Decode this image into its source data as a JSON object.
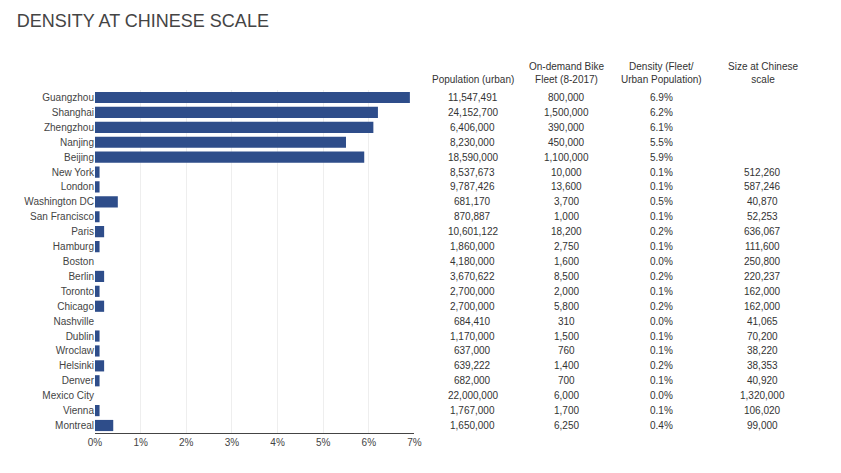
{
  "chart_data": {
    "type": "bar",
    "orientation": "horizontal",
    "title": "DENSITY AT CHINESE SCALE",
    "categories": [
      "Guangzhou",
      "Shanghai",
      "Zhengzhou",
      "Nanjing",
      "Beijing",
      "New York",
      "London",
      "Washington DC",
      "San Francisco",
      "Paris",
      "Hamburg",
      "Boston",
      "Berlin",
      "Toronto",
      "Chicago",
      "Nashville",
      "Dublin",
      "Wroclaw",
      "Helsinki",
      "Denver",
      "Mexico City",
      "Vienna",
      "Montreal"
    ],
    "values": [
      6.9,
      6.2,
      6.1,
      5.5,
      5.9,
      0.1,
      0.1,
      0.5,
      0.1,
      0.2,
      0.1,
      0.0,
      0.2,
      0.1,
      0.2,
      0.0,
      0.1,
      0.1,
      0.2,
      0.1,
      0.0,
      0.1,
      0.4
    ],
    "color": "#2e4d8a",
    "xlim": [
      0,
      7
    ],
    "xticks": [
      {
        "value": 0,
        "label": "0%"
      },
      {
        "value": 1,
        "label": "1%"
      },
      {
        "value": 2,
        "label": "2%"
      },
      {
        "value": 3,
        "label": "3%"
      },
      {
        "value": 4,
        "label": "4%"
      },
      {
        "value": 5,
        "label": "5%"
      },
      {
        "value": 6,
        "label": "6%"
      },
      {
        "value": 7,
        "label": "7%"
      }
    ],
    "grid": true,
    "columns": [
      {
        "header": "Population (urban)",
        "texts": [
          "11,547,491",
          "24,152,700",
          "6,406,000",
          "8,230,000",
          "18,590,000",
          "8,537,673",
          "9,787,426",
          "681,170",
          "870,887",
          "10,601,122",
          "1,860,000",
          "4,180,000",
          "3,670,622",
          "2,700,000",
          "2,700,000",
          "684,410",
          "1,170,000",
          "637,000",
          "639,222",
          "682,000",
          "22,000,000",
          "1,767,000",
          "1,650,000"
        ]
      },
      {
        "header": "On-demand Bike\nFleet (8-2017)",
        "texts": [
          "800,000",
          "1,500,000",
          "390,000",
          "450,000",
          "1,100,000",
          "10,000",
          "13,600",
          "3,700",
          "1,000",
          "18,200",
          "2,750",
          "1,600",
          "8,500",
          "2,000",
          "5,800",
          "310",
          "1,500",
          "760",
          "1,400",
          "700",
          "6,000",
          "1,700",
          "6,250"
        ]
      },
      {
        "header": "Density (Fleet/\nUrban Population)",
        "texts": [
          "6.9%",
          "6.2%",
          "6.1%",
          "5.5%",
          "5.9%",
          "0.1%",
          "0.1%",
          "0.5%",
          "0.1%",
          "0.2%",
          "0.1%",
          "0.0%",
          "0.2%",
          "0.1%",
          "0.2%",
          "0.0%",
          "0.1%",
          "0.1%",
          "0.2%",
          "0.1%",
          "0.0%",
          "0.1%",
          "0.4%"
        ]
      },
      {
        "header": "Size at Chinese\nscale",
        "texts": [
          null,
          null,
          null,
          null,
          null,
          "512,260",
          "587,246",
          "40,870",
          "52,253",
          "636,067",
          "111,600",
          "250,800",
          "220,237",
          "162,000",
          "162,000",
          "41,065",
          "70,200",
          "38,220",
          "38,353",
          "40,920",
          "1,320,000",
          "106,020",
          "99,000"
        ]
      }
    ]
  }
}
